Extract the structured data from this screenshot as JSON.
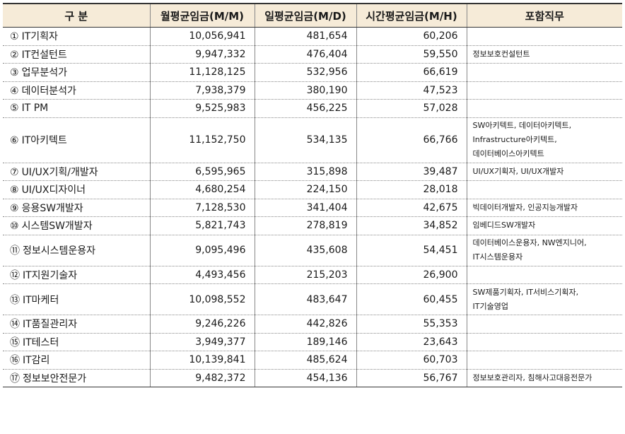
{
  "headers": [
    "구 분",
    "월평균임금(M/M)",
    "일평균임금(M/D)",
    "시간평균임금(M/H)",
    "포함직무"
  ],
  "rows": [
    {
      "no": "①",
      "name": "IT기획자",
      "monthly": "10,056,941",
      "daily": "481,654",
      "hourly": "60,206",
      "duties": ""
    },
    {
      "no": "②",
      "name": "IT컨설턴트",
      "monthly": "9,947,332",
      "daily": "476,404",
      "hourly": "59,550",
      "duties": "정보보호컨설턴트"
    },
    {
      "no": "③",
      "name": "업무분석가",
      "monthly": "11,128,125",
      "daily": "532,956",
      "hourly": "66,619",
      "duties": ""
    },
    {
      "no": "④",
      "name": "데이터분석가",
      "monthly": "7,938,379",
      "daily": "380,190",
      "hourly": "47,523",
      "duties": ""
    },
    {
      "no": "⑤",
      "name": "IT PM",
      "monthly": "9,525,983",
      "daily": "456,225",
      "hourly": "57,028",
      "duties": ""
    },
    {
      "no": "⑥",
      "name": "IT아키텍트",
      "monthly": "11,152,750",
      "daily": "534,135",
      "hourly": "66,766",
      "duties": "SW아키텍트, 데이터아키텍트,\nInfrastructure아키텍트,\n데이터베이스아키텍트"
    },
    {
      "no": "⑦",
      "name": "UI/UX기획/개발자",
      "monthly": "6,595,965",
      "daily": "315,898",
      "hourly": "39,487",
      "duties": "UI/UX기획자, UI/UX개발자"
    },
    {
      "no": "⑧",
      "name": "UI/UX디자이너",
      "monthly": "4,680,254",
      "daily": "224,150",
      "hourly": "28,018",
      "duties": ""
    },
    {
      "no": "⑨",
      "name": "응용SW개발자",
      "monthly": "7,128,530",
      "daily": "341,404",
      "hourly": "42,675",
      "duties": "빅데이터개발자, 인공지능개발자"
    },
    {
      "no": "⑩",
      "name": "시스템SW개발자",
      "monthly": "5,821,743",
      "daily": "278,819",
      "hourly": "34,852",
      "duties": "임베디드SW개발자"
    },
    {
      "no": "⑪",
      "name": "정보시스템운용자",
      "monthly": "9,095,496",
      "daily": "435,608",
      "hourly": "54,451",
      "duties": "데이터베이스운용자, NW엔지니어,\nIT시스템운용자"
    },
    {
      "no": "⑫",
      "name": "IT지원기술자",
      "monthly": "4,493,456",
      "daily": "215,203",
      "hourly": "26,900",
      "duties": ""
    },
    {
      "no": "⑬",
      "name": "IT마케터",
      "monthly": "10,098,552",
      "daily": "483,647",
      "hourly": "60,455",
      "duties": "SW제품기획자, IT서비스기획자,\nIT기술영업"
    },
    {
      "no": "⑭",
      "name": "IT품질관리자",
      "monthly": "9,246,226",
      "daily": "442,826",
      "hourly": "55,353",
      "duties": ""
    },
    {
      "no": "⑮",
      "name": "IT테스터",
      "monthly": "3,949,377",
      "daily": "189,146",
      "hourly": "23,643",
      "duties": ""
    },
    {
      "no": "⑯",
      "name": "IT감리",
      "monthly": "10,139,841",
      "daily": "485,624",
      "hourly": "60,703",
      "duties": ""
    },
    {
      "no": "⑰",
      "name": "정보보안전문가",
      "monthly": "9,482,372",
      "daily": "454,136",
      "hourly": "56,767",
      "duties": "정보보호관리자, 침해사고대응전문가"
    }
  ]
}
